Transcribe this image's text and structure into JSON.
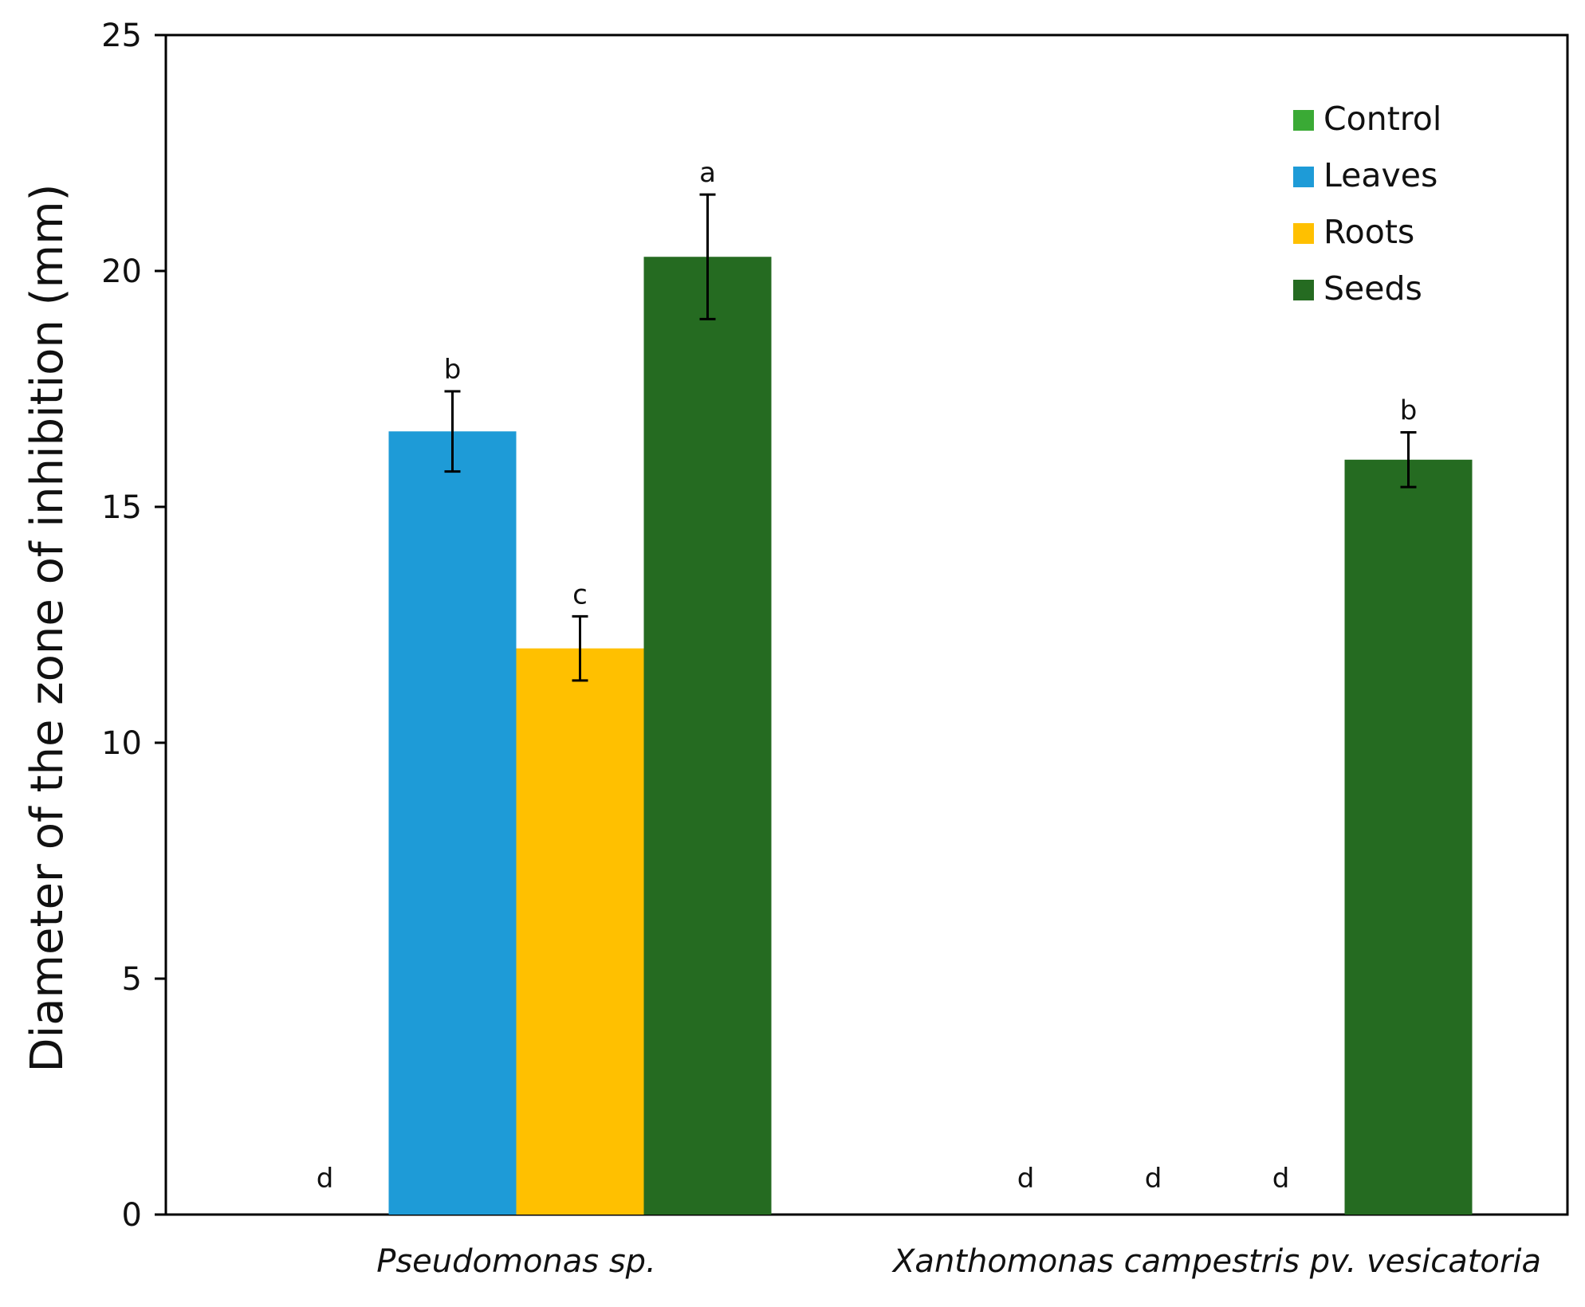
{
  "chart_data": {
    "type": "bar",
    "title": "",
    "ylabel": "Diameter of the zone of inhibition (mm)",
    "xlabel": "",
    "ylim": [
      0,
      25
    ],
    "yticks": [
      0,
      5,
      10,
      15,
      20,
      25
    ],
    "yticks_text": [
      "0",
      "5",
      "10",
      "15",
      "20",
      "25"
    ],
    "categories": [
      "Pseudomonas sp.",
      "Xanthomonas campestris pv. vesicatoria"
    ],
    "legend_position": "top-right",
    "series": [
      {
        "name": "Control",
        "color": "#3aaa35",
        "values": [
          0,
          0
        ],
        "errors": [
          0,
          0
        ],
        "significance": [
          "d",
          "d"
        ]
      },
      {
        "name": "Leaves",
        "color": "#1e9bd7",
        "values": [
          16.6,
          0
        ],
        "errors": [
          0.85,
          0
        ],
        "significance": [
          "b",
          "d"
        ]
      },
      {
        "name": "Roots",
        "color": "#ffc000",
        "values": [
          12.0,
          0
        ],
        "errors": [
          0.68,
          0
        ],
        "significance": [
          "c",
          "d"
        ]
      },
      {
        "name": "Seeds",
        "color": "#256b21",
        "values": [
          20.3,
          16.0
        ],
        "errors": [
          1.32,
          0.58
        ],
        "significance": [
          "a",
          "b"
        ]
      }
    ]
  }
}
